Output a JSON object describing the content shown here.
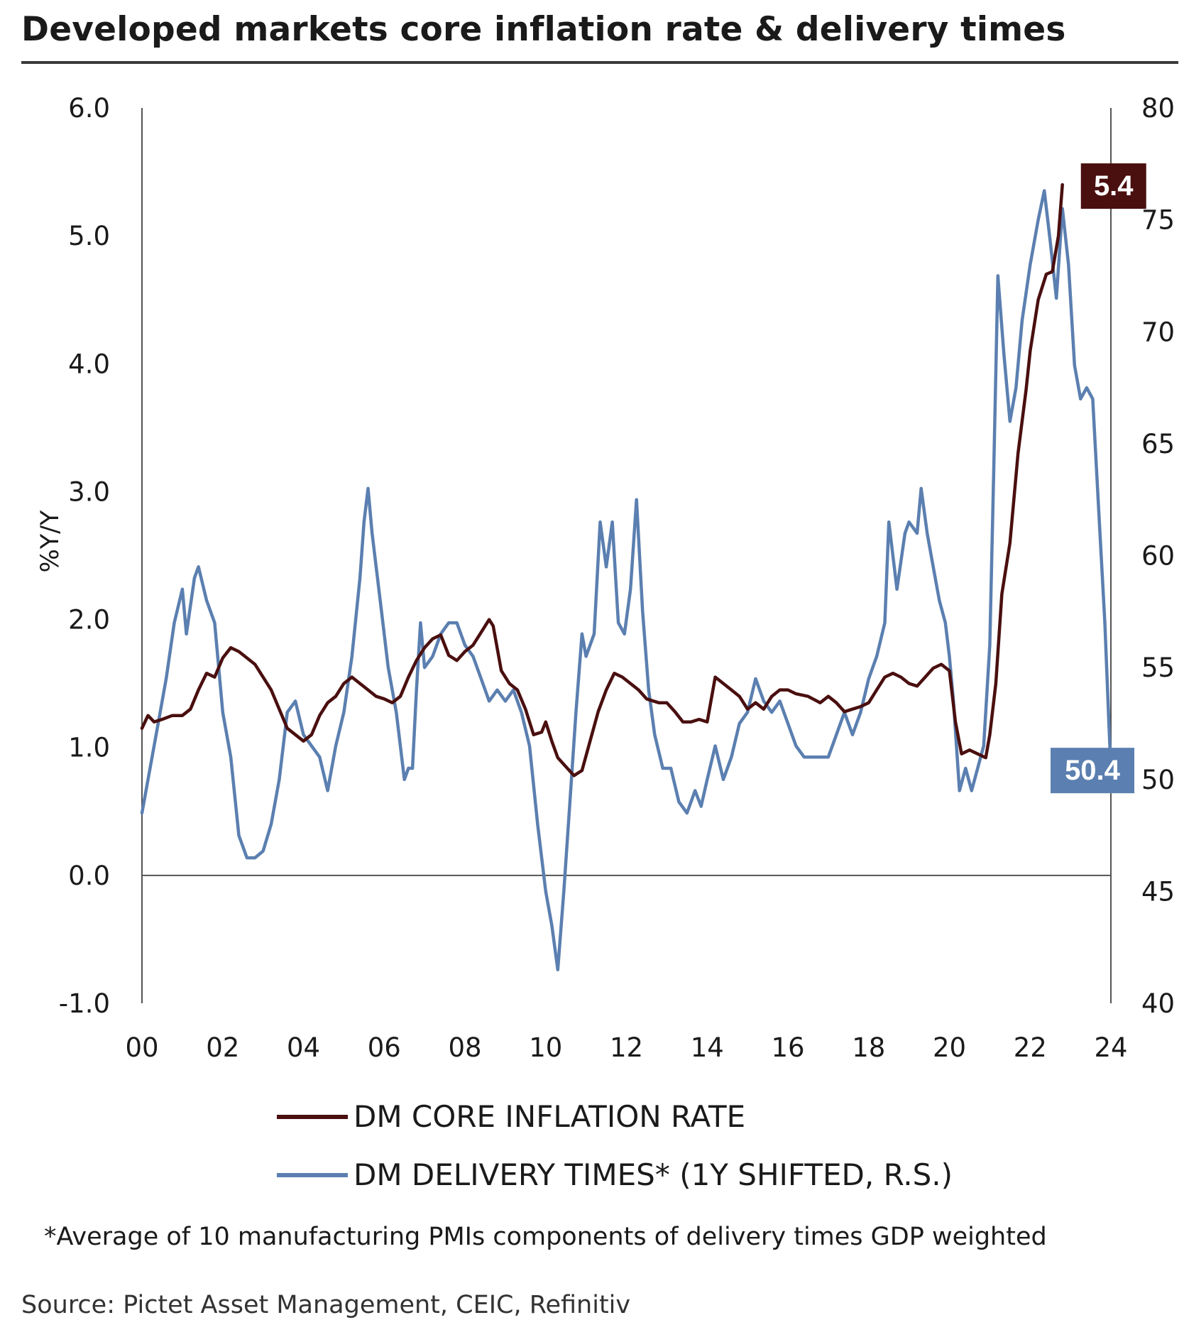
{
  "title": "Developed markets core inflation rate & delivery times",
  "footnote": "*Average of 10 manufacturing PMIs components of delivery times GDP weighted",
  "source": "Source: Pictet Asset Management, CEIC, Refinitiv",
  "colors": {
    "inflation": "#4a0f0f",
    "delivery": "#5b7fb0",
    "axis": "#555555",
    "title_rule": "#3a3a3a"
  },
  "chart_data": {
    "type": "line",
    "title": "Developed markets core inflation rate & delivery times",
    "xlabel": "",
    "ylabel": "%Y/Y",
    "y2label": "",
    "xlim": [
      2000,
      2024
    ],
    "ylim": [
      -1.0,
      6.0
    ],
    "y2lim": [
      40,
      80
    ],
    "x_ticks": [
      "00",
      "02",
      "04",
      "06",
      "08",
      "10",
      "12",
      "14",
      "16",
      "18",
      "20",
      "22",
      "24"
    ],
    "x_tick_values": [
      2000,
      2002,
      2004,
      2006,
      2008,
      2010,
      2012,
      2014,
      2016,
      2018,
      2020,
      2022,
      2024
    ],
    "y_ticks": [
      "6.0",
      "5.0",
      "4.0",
      "3.0",
      "2.0",
      "1.0",
      "0.0",
      "-1.0"
    ],
    "y_tick_values": [
      6,
      5,
      4,
      3,
      2,
      1,
      0,
      -1
    ],
    "y2_ticks": [
      "80",
      "75",
      "70",
      "65",
      "60",
      "55",
      "50",
      "45",
      "40"
    ],
    "y2_tick_values": [
      80,
      75,
      70,
      65,
      60,
      55,
      50,
      45,
      40
    ],
    "grid": false,
    "legend": "bottom",
    "series": [
      {
        "name": "DM CORE INFLATION RATE",
        "axis": "left",
        "end_label": "5.4",
        "points": [
          [
            2000.0,
            1.15
          ],
          [
            2000.15,
            1.25
          ],
          [
            2000.3,
            1.2
          ],
          [
            2000.5,
            1.22
          ],
          [
            2000.75,
            1.25
          ],
          [
            2001.0,
            1.25
          ],
          [
            2001.2,
            1.3
          ],
          [
            2001.4,
            1.45
          ],
          [
            2001.6,
            1.58
          ],
          [
            2001.8,
            1.55
          ],
          [
            2002.0,
            1.7
          ],
          [
            2002.2,
            1.78
          ],
          [
            2002.4,
            1.75
          ],
          [
            2002.6,
            1.7
          ],
          [
            2002.8,
            1.65
          ],
          [
            2003.0,
            1.55
          ],
          [
            2003.2,
            1.45
          ],
          [
            2003.4,
            1.3
          ],
          [
            2003.6,
            1.15
          ],
          [
            2003.8,
            1.1
          ],
          [
            2004.0,
            1.05
          ],
          [
            2004.2,
            1.1
          ],
          [
            2004.4,
            1.25
          ],
          [
            2004.6,
            1.35
          ],
          [
            2004.8,
            1.4
          ],
          [
            2005.0,
            1.5
          ],
          [
            2005.2,
            1.55
          ],
          [
            2005.4,
            1.5
          ],
          [
            2005.6,
            1.45
          ],
          [
            2005.8,
            1.4
          ],
          [
            2006.0,
            1.38
          ],
          [
            2006.2,
            1.35
          ],
          [
            2006.4,
            1.4
          ],
          [
            2006.6,
            1.55
          ],
          [
            2006.8,
            1.68
          ],
          [
            2007.0,
            1.78
          ],
          [
            2007.2,
            1.85
          ],
          [
            2007.4,
            1.88
          ],
          [
            2007.6,
            1.72
          ],
          [
            2007.8,
            1.68
          ],
          [
            2008.0,
            1.75
          ],
          [
            2008.2,
            1.8
          ],
          [
            2008.4,
            1.9
          ],
          [
            2008.6,
            2.0
          ],
          [
            2008.7,
            1.95
          ],
          [
            2008.9,
            1.6
          ],
          [
            2009.1,
            1.5
          ],
          [
            2009.3,
            1.45
          ],
          [
            2009.5,
            1.3
          ],
          [
            2009.7,
            1.1
          ],
          [
            2009.9,
            1.12
          ],
          [
            2010.0,
            1.2
          ],
          [
            2010.15,
            1.05
          ],
          [
            2010.3,
            0.92
          ],
          [
            2010.5,
            0.85
          ],
          [
            2010.7,
            0.78
          ],
          [
            2010.9,
            0.82
          ],
          [
            2011.1,
            1.05
          ],
          [
            2011.3,
            1.28
          ],
          [
            2011.5,
            1.45
          ],
          [
            2011.7,
            1.58
          ],
          [
            2011.9,
            1.55
          ],
          [
            2012.1,
            1.5
          ],
          [
            2012.3,
            1.45
          ],
          [
            2012.5,
            1.38
          ],
          [
            2012.8,
            1.35
          ],
          [
            2013.0,
            1.35
          ],
          [
            2013.2,
            1.28
          ],
          [
            2013.4,
            1.2
          ],
          [
            2013.6,
            1.2
          ],
          [
            2013.8,
            1.22
          ],
          [
            2014.0,
            1.2
          ],
          [
            2014.2,
            1.55
          ],
          [
            2014.4,
            1.5
          ],
          [
            2014.6,
            1.45
          ],
          [
            2014.8,
            1.4
          ],
          [
            2015.0,
            1.3
          ],
          [
            2015.2,
            1.35
          ],
          [
            2015.4,
            1.3
          ],
          [
            2015.6,
            1.4
          ],
          [
            2015.8,
            1.45
          ],
          [
            2016.0,
            1.45
          ],
          [
            2016.2,
            1.42
          ],
          [
            2016.5,
            1.4
          ],
          [
            2016.8,
            1.35
          ],
          [
            2017.0,
            1.4
          ],
          [
            2017.2,
            1.35
          ],
          [
            2017.4,
            1.28
          ],
          [
            2017.6,
            1.3
          ],
          [
            2017.8,
            1.32
          ],
          [
            2018.0,
            1.35
          ],
          [
            2018.2,
            1.45
          ],
          [
            2018.4,
            1.55
          ],
          [
            2018.6,
            1.58
          ],
          [
            2018.8,
            1.55
          ],
          [
            2019.0,
            1.5
          ],
          [
            2019.2,
            1.48
          ],
          [
            2019.4,
            1.55
          ],
          [
            2019.6,
            1.62
          ],
          [
            2019.8,
            1.65
          ],
          [
            2020.0,
            1.6
          ],
          [
            2020.15,
            1.2
          ],
          [
            2020.3,
            0.95
          ],
          [
            2020.5,
            0.98
          ],
          [
            2020.7,
            0.95
          ],
          [
            2020.9,
            0.92
          ],
          [
            2021.0,
            1.1
          ],
          [
            2021.15,
            1.5
          ],
          [
            2021.3,
            2.2
          ],
          [
            2021.5,
            2.6
          ],
          [
            2021.7,
            3.3
          ],
          [
            2021.9,
            3.8
          ],
          [
            2022.0,
            4.1
          ],
          [
            2022.2,
            4.5
          ],
          [
            2022.4,
            4.7
          ],
          [
            2022.55,
            4.72
          ],
          [
            2022.7,
            5.0
          ],
          [
            2022.8,
            5.4
          ]
        ]
      },
      {
        "name": "DM DELIVERY TIMES* (1Y SHIFTED, R.S.)",
        "axis": "right",
        "end_label": "50.4",
        "points": [
          [
            2000.0,
            48.5
          ],
          [
            2000.2,
            50.5
          ],
          [
            2000.4,
            52.5
          ],
          [
            2000.6,
            54.5
          ],
          [
            2000.8,
            57.0
          ],
          [
            2001.0,
            58.5
          ],
          [
            2001.1,
            56.5
          ],
          [
            2001.3,
            59.0
          ],
          [
            2001.4,
            59.5
          ],
          [
            2001.6,
            58.0
          ],
          [
            2001.8,
            57.0
          ],
          [
            2002.0,
            53.0
          ],
          [
            2002.2,
            51.0
          ],
          [
            2002.4,
            47.5
          ],
          [
            2002.6,
            46.5
          ],
          [
            2002.8,
            46.5
          ],
          [
            2003.0,
            46.8
          ],
          [
            2003.2,
            48.0
          ],
          [
            2003.4,
            50.0
          ],
          [
            2003.6,
            53.0
          ],
          [
            2003.8,
            53.5
          ],
          [
            2004.0,
            52.0
          ],
          [
            2004.2,
            51.5
          ],
          [
            2004.4,
            51.0
          ],
          [
            2004.6,
            49.5
          ],
          [
            2004.8,
            51.5
          ],
          [
            2005.0,
            53.0
          ],
          [
            2005.2,
            55.5
          ],
          [
            2005.4,
            59.0
          ],
          [
            2005.5,
            61.5
          ],
          [
            2005.6,
            63.0
          ],
          [
            2005.7,
            61.0
          ],
          [
            2005.9,
            58.0
          ],
          [
            2006.1,
            55.0
          ],
          [
            2006.3,
            53.0
          ],
          [
            2006.5,
            50.0
          ],
          [
            2006.6,
            50.5
          ],
          [
            2006.7,
            50.5
          ],
          [
            2006.8,
            54.0
          ],
          [
            2006.9,
            57.0
          ],
          [
            2007.0,
            55.0
          ],
          [
            2007.2,
            55.5
          ],
          [
            2007.4,
            56.5
          ],
          [
            2007.6,
            57.0
          ],
          [
            2007.8,
            57.0
          ],
          [
            2008.0,
            56.0
          ],
          [
            2008.2,
            55.5
          ],
          [
            2008.4,
            54.5
          ],
          [
            2008.6,
            53.5
          ],
          [
            2008.8,
            54.0
          ],
          [
            2009.0,
            53.5
          ],
          [
            2009.2,
            54.0
          ],
          [
            2009.4,
            53.0
          ],
          [
            2009.6,
            51.5
          ],
          [
            2009.8,
            48.0
          ],
          [
            2010.0,
            45.0
          ],
          [
            2010.15,
            43.5
          ],
          [
            2010.3,
            41.5
          ],
          [
            2010.45,
            45.0
          ],
          [
            2010.6,
            49.0
          ],
          [
            2010.75,
            53.0
          ],
          [
            2010.9,
            56.5
          ],
          [
            2011.0,
            55.5
          ],
          [
            2011.2,
            56.5
          ],
          [
            2011.35,
            61.5
          ],
          [
            2011.5,
            59.5
          ],
          [
            2011.65,
            61.5
          ],
          [
            2011.8,
            57.0
          ],
          [
            2011.95,
            56.5
          ],
          [
            2012.1,
            58.5
          ],
          [
            2012.25,
            62.5
          ],
          [
            2012.4,
            57.5
          ],
          [
            2012.55,
            54.0
          ],
          [
            2012.7,
            52.0
          ],
          [
            2012.9,
            50.5
          ],
          [
            2013.1,
            50.5
          ],
          [
            2013.3,
            49.0
          ],
          [
            2013.5,
            48.5
          ],
          [
            2013.7,
            49.5
          ],
          [
            2013.85,
            48.8
          ],
          [
            2014.0,
            50.0
          ],
          [
            2014.2,
            51.5
          ],
          [
            2014.4,
            50.0
          ],
          [
            2014.6,
            51.0
          ],
          [
            2014.8,
            52.5
          ],
          [
            2015.0,
            53.0
          ],
          [
            2015.2,
            54.5
          ],
          [
            2015.4,
            53.5
          ],
          [
            2015.6,
            53.0
          ],
          [
            2015.8,
            53.5
          ],
          [
            2016.0,
            52.5
          ],
          [
            2016.2,
            51.5
          ],
          [
            2016.4,
            51.0
          ],
          [
            2016.6,
            51.0
          ],
          [
            2016.8,
            51.0
          ],
          [
            2017.0,
            51.0
          ],
          [
            2017.2,
            52.0
          ],
          [
            2017.4,
            53.0
          ],
          [
            2017.6,
            52.0
          ],
          [
            2017.8,
            53.0
          ],
          [
            2018.0,
            54.5
          ],
          [
            2018.2,
            55.5
          ],
          [
            2018.4,
            57.0
          ],
          [
            2018.5,
            61.5
          ],
          [
            2018.7,
            58.5
          ],
          [
            2018.9,
            61.0
          ],
          [
            2019.0,
            61.5
          ],
          [
            2019.2,
            61.0
          ],
          [
            2019.3,
            63.0
          ],
          [
            2019.45,
            61.0
          ],
          [
            2019.6,
            59.5
          ],
          [
            2019.75,
            58.0
          ],
          [
            2019.9,
            57.0
          ],
          [
            2020.0,
            55.5
          ],
          [
            2020.1,
            53.5
          ],
          [
            2020.25,
            49.5
          ],
          [
            2020.4,
            50.5
          ],
          [
            2020.55,
            49.5
          ],
          [
            2020.7,
            50.5
          ],
          [
            2020.85,
            51.5
          ],
          [
            2021.0,
            56.0
          ],
          [
            2021.1,
            64.0
          ],
          [
            2021.2,
            72.5
          ],
          [
            2021.35,
            69.0
          ],
          [
            2021.5,
            66.0
          ],
          [
            2021.65,
            67.5
          ],
          [
            2021.8,
            70.5
          ],
          [
            2022.0,
            73.0
          ],
          [
            2022.2,
            75.0
          ],
          [
            2022.35,
            76.3
          ],
          [
            2022.5,
            74.0
          ],
          [
            2022.65,
            71.5
          ],
          [
            2022.8,
            75.5
          ],
          [
            2022.95,
            73.0
          ],
          [
            2023.1,
            68.5
          ],
          [
            2023.25,
            67.0
          ],
          [
            2023.4,
            67.5
          ],
          [
            2023.55,
            67.0
          ],
          [
            2023.7,
            62.0
          ],
          [
            2023.85,
            57.0
          ],
          [
            2023.95,
            52.5
          ],
          [
            2024.0,
            50.4
          ]
        ]
      }
    ]
  }
}
